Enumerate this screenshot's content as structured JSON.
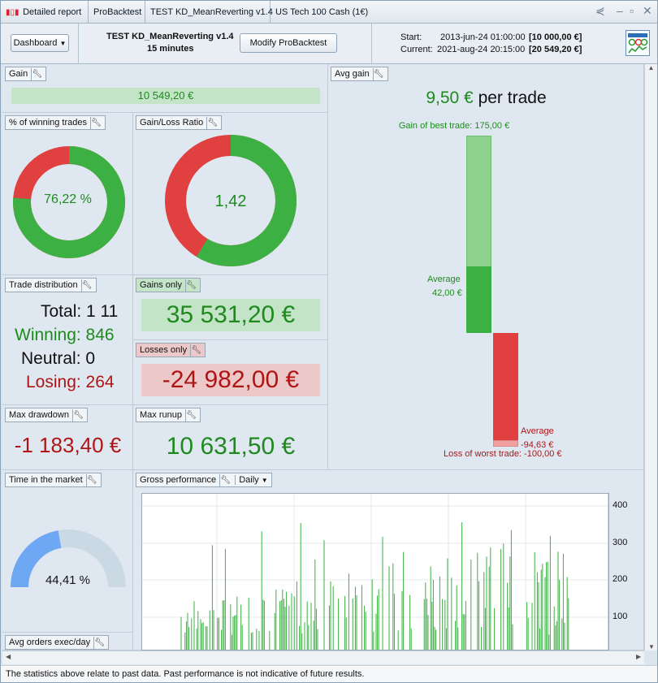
{
  "titlebar": {
    "tabs": [
      "Detailed report",
      "ProBacktest",
      "TEST KD_MeanReverting v1.4",
      "US Tech 100 Cash (1€)"
    ]
  },
  "header": {
    "dashboard_label": "Dashboard",
    "strategy_name": "TEST KD_MeanReverting v1.4",
    "timeframe": "15 minutes",
    "modify_label": "Modify ProBacktest",
    "start_label": "Start:",
    "start_date": "2013-jun-24 01:00:00",
    "start_capital": "[10 000,00 €]",
    "current_label": "Current:",
    "current_date": "2021-aug-24 20:15:00",
    "current_capital": "[20 549,20 €]"
  },
  "gain": {
    "title": "Gain",
    "value": "10 549,20 €"
  },
  "winning_pct": {
    "title": "% of winning trades",
    "value": "76,22 %",
    "fraction": 0.7622
  },
  "gain_loss_ratio": {
    "title": "Gain/Loss Ratio",
    "value": "1,42",
    "fraction": 0.5868
  },
  "trade_distribution": {
    "title": "Trade distribution",
    "total": "Total: 1 11",
    "winning": "Winning: 846",
    "neutral": "Neutral: 0",
    "losing": "Losing: 264"
  },
  "gains_only": {
    "title": "Gains only",
    "value": "35 531,20 €"
  },
  "losses_only": {
    "title": "Losses only",
    "value": "-24 982,00 €"
  },
  "max_drawdown": {
    "title": "Max drawdown",
    "value": "-1 183,40 €"
  },
  "max_runup": {
    "title": "Max runup",
    "value": "10 631,50 €"
  },
  "avg_gain": {
    "title": "Avg gain",
    "value": "9,50 €",
    "unit": "per trade",
    "best_trade": "Gain of best trade: 175,00 €",
    "avg_gain_label": "Average",
    "avg_gain_value": "42,00 €",
    "avg_loss_label": "Average",
    "avg_loss_value": "-94,63 €",
    "worst_trade": "Loss of worst trade: -100,00 €",
    "best": 175.0,
    "avg_win": 42.0,
    "avg_loss": -94.63,
    "worst": -100.0
  },
  "time_in_market": {
    "title": "Time in the market",
    "value": "44,41 %",
    "fraction": 0.4441
  },
  "gross_performance": {
    "title": "Gross performance",
    "period": "Daily",
    "yticks": [
      "400",
      "300",
      "200",
      "100"
    ]
  },
  "avg_orders": {
    "title": "Avg orders exec/day"
  },
  "footer": {
    "text": "The statistics above relate to past data. Past performance is not indicative of future results."
  },
  "colors": {
    "green": "#3cb043",
    "red": "#e04040",
    "light_green": "#8fd18f",
    "blue": "#6ea8f5"
  }
}
